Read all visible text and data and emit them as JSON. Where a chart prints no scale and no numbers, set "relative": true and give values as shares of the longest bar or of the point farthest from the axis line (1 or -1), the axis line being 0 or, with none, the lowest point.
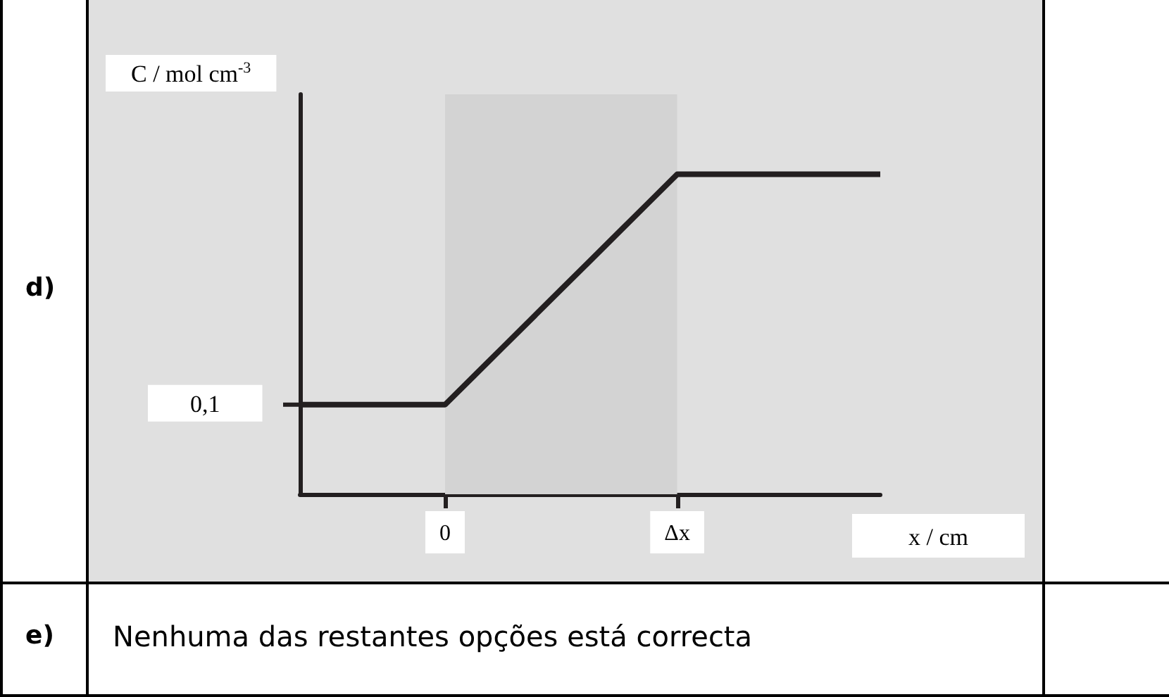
{
  "chart_data": {
    "type": "line",
    "relative": true,
    "ylabel": "C / mol cm$^{-3}$",
    "xlabel": "x / cm",
    "categories": [
      null,
      null,
      null,
      null,
      null,
      "0",
      null,
      null,
      null,
      null,
      null,
      null,
      null,
      "Δx",
      null,
      null,
      null,
      null,
      null,
      null,
      null
    ],
    "series": [
      {
        "color": "#231f20",
        "values": [
          0.28,
          0.28,
          0.28,
          0.28,
          0.28,
          0.28,
          0.37,
          0.46,
          0.55,
          0.64,
          0.73,
          0.82,
          0.91,
          1,
          1,
          1,
          1,
          1,
          1,
          1,
          1
        ]
      }
    ],
    "bands": [
      {
        "axis": "x",
        "from": "0",
        "to": "Δx",
        "color": "#d3d3d3"
      }
    ],
    "annotations": [
      "d)",
      "e)",
      "Nenhuma das restantes opções está correcta",
      "0,1"
    ],
    "marker": "none",
    "line_style": "solid"
  }
}
